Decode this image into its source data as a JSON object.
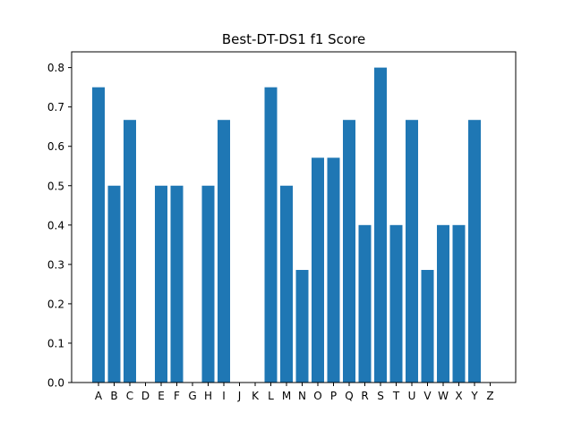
{
  "chart_data": {
    "type": "bar",
    "title": "Best-DT-DS1 f1 Score",
    "xlabel": "",
    "ylabel": "",
    "categories": [
      "A",
      "B",
      "C",
      "D",
      "E",
      "F",
      "G",
      "H",
      "I",
      "J",
      "K",
      "L",
      "M",
      "N",
      "O",
      "P",
      "Q",
      "R",
      "S",
      "T",
      "U",
      "V",
      "W",
      "X",
      "Y",
      "Z"
    ],
    "values": [
      0.75,
      0.5,
      0.667,
      0,
      0.5,
      0.5,
      0,
      0.5,
      0.667,
      0,
      0,
      0.75,
      0.5,
      0.286,
      0.571,
      0.571,
      0.667,
      0.4,
      0.8,
      0.4,
      0.667,
      0.286,
      0.4,
      0.4,
      0.667,
      0
    ],
    "ylim": [
      0,
      0.84
    ],
    "yticks": [
      0.0,
      0.1,
      0.2,
      0.3,
      0.4,
      0.5,
      0.6,
      0.7,
      0.8
    ],
    "ytick_labels": [
      "0.0",
      "0.1",
      "0.2",
      "0.3",
      "0.4",
      "0.5",
      "0.6",
      "0.7",
      "0.8"
    ],
    "bar_color": "#1f77b4",
    "grid": false,
    "legend": "none"
  }
}
